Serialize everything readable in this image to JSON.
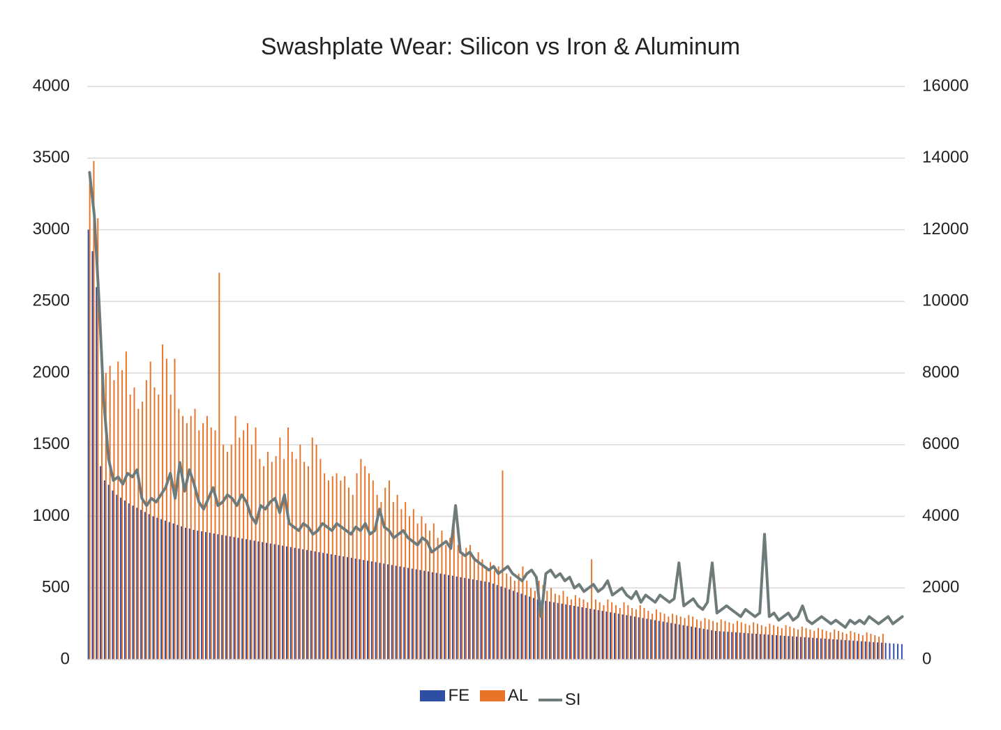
{
  "chart_data": {
    "type": "bar",
    "title": "Swashplate Wear: Silicon vs Iron & Aluminum",
    "y_left": {
      "ticks": [
        "0",
        "500",
        "1000",
        "1500",
        "2000",
        "2500",
        "3000",
        "3500",
        "4000"
      ],
      "min": 0,
      "max": 4000
    },
    "y_right": {
      "ticks": [
        "0",
        "2000",
        "4000",
        "6000",
        "8000",
        "10000",
        "12000",
        "14000",
        "16000"
      ],
      "min": 0,
      "max": 16000
    },
    "gridlines": true,
    "legend_position": "bottom",
    "series": [
      {
        "name": "FE",
        "type": "bar",
        "axis": "left",
        "color": "#2e4ea3",
        "values": [
          3000,
          2850,
          2600,
          1350,
          1250,
          1220,
          1180,
          1150,
          1130,
          1110,
          1090,
          1075,
          1060,
          1045,
          1030,
          1015,
          1000,
          990,
          980,
          970,
          960,
          950,
          940,
          930,
          920,
          915,
          905,
          900,
          895,
          890,
          885,
          880,
          875,
          870,
          865,
          860,
          855,
          850,
          845,
          840,
          835,
          830,
          825,
          820,
          815,
          810,
          805,
          800,
          795,
          790,
          785,
          780,
          775,
          770,
          765,
          760,
          755,
          750,
          745,
          740,
          735,
          730,
          725,
          720,
          715,
          710,
          705,
          700,
          695,
          690,
          685,
          680,
          675,
          670,
          665,
          660,
          655,
          650,
          645,
          640,
          635,
          630,
          625,
          620,
          615,
          610,
          605,
          600,
          595,
          590,
          585,
          580,
          575,
          570,
          565,
          560,
          555,
          550,
          545,
          540,
          530,
          520,
          510,
          500,
          490,
          480,
          470,
          460,
          450,
          440,
          430,
          420,
          415,
          410,
          405,
          400,
          395,
          390,
          385,
          380,
          375,
          370,
          365,
          360,
          355,
          350,
          345,
          340,
          335,
          330,
          325,
          320,
          315,
          310,
          305,
          300,
          295,
          290,
          285,
          280,
          275,
          270,
          265,
          260,
          255,
          250,
          245,
          240,
          235,
          230,
          225,
          220,
          215,
          210,
          205,
          200,
          198,
          196,
          194,
          192,
          190,
          188,
          186,
          184,
          182,
          180,
          178,
          176,
          174,
          172,
          170,
          168,
          166,
          164,
          162,
          160,
          158,
          156,
          154,
          152,
          150,
          148,
          146,
          144,
          142,
          140,
          138,
          136,
          134,
          132,
          130,
          128,
          126,
          124,
          122,
          120,
          118,
          116,
          114,
          112,
          110,
          108
        ]
      },
      {
        "name": "AL",
        "type": "bar",
        "axis": "left",
        "color": "#e8742a",
        "values": [
          3400,
          3480,
          3080,
          2100,
          2000,
          2050,
          1950,
          2080,
          2020,
          2150,
          1850,
          1900,
          1750,
          1800,
          1950,
          2080,
          1900,
          1850,
          2200,
          2100,
          1850,
          2100,
          1750,
          1700,
          1650,
          1700,
          1750,
          1600,
          1650,
          1700,
          1620,
          1600,
          2700,
          1500,
          1450,
          1500,
          1700,
          1550,
          1600,
          1650,
          1500,
          1620,
          1400,
          1350,
          1450,
          1380,
          1420,
          1550,
          1400,
          1620,
          1450,
          1400,
          1500,
          1380,
          1350,
          1550,
          1500,
          1400,
          1300,
          1250,
          1280,
          1300,
          1250,
          1280,
          1200,
          1150,
          1300,
          1400,
          1350,
          1300,
          1250,
          1150,
          1100,
          1200,
          1250,
          1100,
          1150,
          1050,
          1100,
          1000,
          1050,
          950,
          1000,
          950,
          900,
          950,
          850,
          900,
          800,
          850,
          1000,
          800,
          750,
          780,
          800,
          700,
          750,
          700,
          650,
          680,
          620,
          650,
          1320,
          600,
          580,
          550,
          600,
          650,
          550,
          500,
          480,
          550,
          520,
          480,
          500,
          460,
          450,
          480,
          440,
          420,
          450,
          430,
          420,
          400,
          700,
          420,
          400,
          380,
          420,
          400,
          380,
          360,
          400,
          380,
          360,
          350,
          380,
          360,
          340,
          320,
          350,
          330,
          320,
          300,
          320,
          310,
          300,
          290,
          310,
          300,
          280,
          270,
          290,
          280,
          270,
          260,
          280,
          270,
          260,
          250,
          270,
          260,
          250,
          240,
          260,
          250,
          240,
          230,
          250,
          240,
          230,
          220,
          240,
          230,
          220,
          210,
          230,
          220,
          210,
          200,
          220,
          210,
          200,
          190,
          210,
          200,
          190,
          180,
          200,
          190,
          180,
          170,
          190,
          180,
          170,
          160,
          180
        ]
      },
      {
        "name": "SI",
        "type": "line",
        "axis": "right",
        "color": "#6e7b7a",
        "values": [
          13600,
          12400,
          10000,
          7200,
          5600,
          5000,
          5100,
          4900,
          5200,
          5100,
          5300,
          4500,
          4300,
          4500,
          4400,
          4600,
          4800,
          5200,
          4500,
          5500,
          4700,
          5300,
          4900,
          4400,
          4200,
          4500,
          4800,
          4300,
          4400,
          4600,
          4500,
          4300,
          4600,
          4400,
          4000,
          3800,
          4300,
          4200,
          4400,
          4500,
          4100,
          4600,
          3800,
          3700,
          3600,
          3800,
          3700,
          3500,
          3600,
          3800,
          3700,
          3600,
          3800,
          3700,
          3600,
          3500,
          3700,
          3600,
          3800,
          3500,
          3600,
          4200,
          3700,
          3600,
          3400,
          3500,
          3600,
          3400,
          3300,
          3200,
          3400,
          3300,
          3000,
          3100,
          3200,
          3300,
          3100,
          4300,
          3000,
          2900,
          3000,
          2800,
          2700,
          2600,
          2500,
          2600,
          2400,
          2500,
          2600,
          2400,
          2300,
          2200,
          2400,
          2500,
          2300,
          1200,
          2400,
          2500,
          2300,
          2400,
          2200,
          2300,
          2000,
          2100,
          1900,
          2000,
          2100,
          1900,
          2000,
          2200,
          1800,
          1900,
          2000,
          1800,
          1700,
          1900,
          1600,
          1800,
          1700,
          1600,
          1800,
          1700,
          1600,
          1700,
          2700,
          1500,
          1600,
          1700,
          1500,
          1400,
          1600,
          2700,
          1300,
          1400,
          1500,
          1400,
          1300,
          1200,
          1400,
          1300,
          1200,
          1300,
          3500,
          1200,
          1300,
          1100,
          1200,
          1300,
          1100,
          1200,
          1500,
          1100,
          1000,
          1100,
          1200,
          1100,
          1000,
          1100,
          1000,
          900,
          1100,
          1000,
          1100,
          1000,
          1200,
          1100,
          1000,
          1100,
          1200,
          1000,
          1100,
          1200
        ]
      }
    ]
  }
}
